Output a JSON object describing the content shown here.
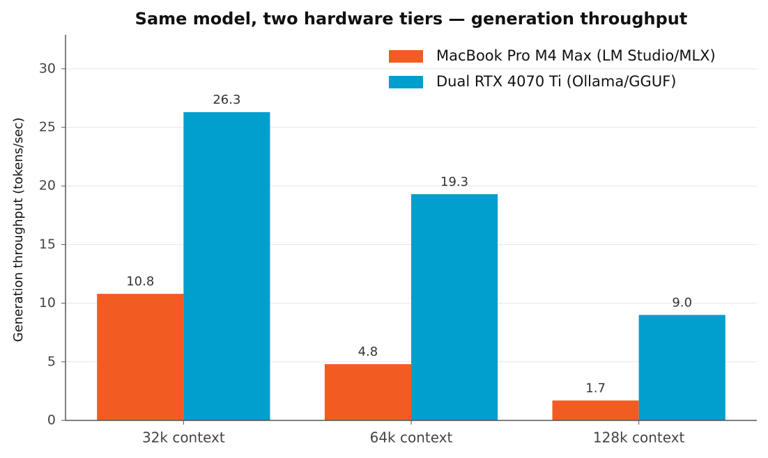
{
  "chart_data": {
    "type": "bar",
    "title": "Same model, two hardware tiers — generation throughput",
    "y_label": "Generation throughput (tokens/sec)",
    "categories": [
      "32k context",
      "64k context",
      "128k context"
    ],
    "series": [
      {
        "name": "MacBook Pro M4 Max (LM Studio/MLX)",
        "color": "#f25c22",
        "values": [
          10.8,
          4.8,
          1.7
        ],
        "value_labels": [
          "10.8",
          "4.8",
          "1.7"
        ]
      },
      {
        "name": "Dual RTX 4070 Ti (Ollama/GGUF)",
        "color": "#009fcc",
        "values": [
          26.3,
          19.3,
          9.0
        ],
        "value_labels": [
          "26.3",
          "19.3",
          "9.0"
        ]
      }
    ],
    "ylim": [
      0,
      32.9
    ],
    "yticks": [
      0,
      5,
      10,
      15,
      20,
      25,
      30
    ],
    "grid": true,
    "legend": "upper right"
  }
}
